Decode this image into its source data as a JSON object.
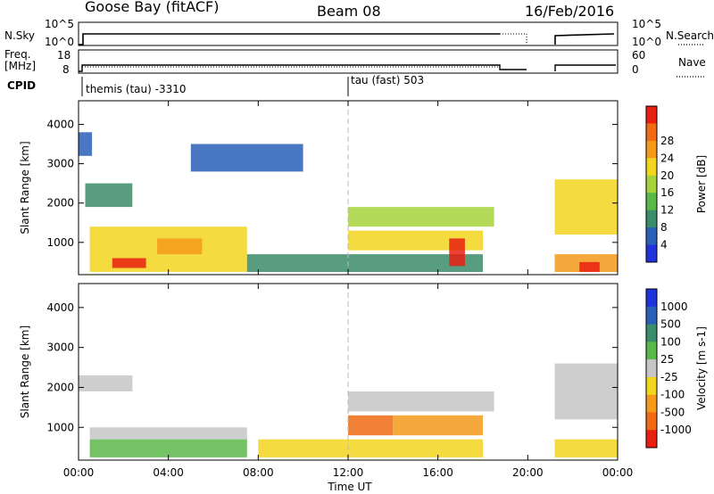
{
  "header": {
    "station": "Goose Bay (fitACF)",
    "beam": "Beam 08",
    "date": "16/Feb/2016"
  },
  "strips": {
    "nsky_label": "N.Sky",
    "nsky_ticks": [
      "10^5",
      "10^0"
    ],
    "nsearch_label": "N.Search",
    "nsearch_ticks": [
      "10^5",
      "10^0"
    ],
    "freq_label_1": "Freq.",
    "freq_label_2": "[MHz]",
    "freq_ticks": [
      "18",
      "8"
    ],
    "nave_label": "Nave",
    "nave_ticks": [
      "60",
      "0"
    ],
    "cpid_label": "CPID",
    "cpid_1": "themis (tau) -3310",
    "cpid_2": "tau (fast) 503"
  },
  "colors": {
    "power": [
      "#1f33d8",
      "#2a5fb8",
      "#3b8c6a",
      "#5ab84a",
      "#a8d23c",
      "#f2d51d",
      "#f39a1a",
      "#f06a14",
      "#e81e10"
    ],
    "velocity": [
      "#1f33d8",
      "#2a5fb8",
      "#3b8c6a",
      "#5ab84a",
      "#c6c6c6",
      "#f2d51d",
      "#f39a1a",
      "#f06a14",
      "#e81e10"
    ]
  },
  "chart_data": [
    {
      "type": "heatmap",
      "title": "Power",
      "ylabel": "Slant Range [km]",
      "xlabel": "",
      "xlim": [
        0,
        24
      ],
      "ylim": [
        180,
        4600
      ],
      "yticks": [
        "1000",
        "2000",
        "3000",
        "4000"
      ],
      "xticks": [
        "00:00",
        "04:00",
        "08:00",
        "12:00",
        "16:00",
        "20:00",
        "00:00"
      ],
      "colorbar_label": "Power [dB]",
      "colorbar_ticks": [
        "4",
        "8",
        "12",
        "16",
        "20",
        "24",
        "28"
      ],
      "regions": [
        {
          "t0": 0.0,
          "t1": 0.6,
          "r0": 3200,
          "r1": 3800,
          "level": 1
        },
        {
          "t0": 0.3,
          "t1": 2.4,
          "r0": 1900,
          "r1": 2500,
          "level": 2
        },
        {
          "t0": 0.5,
          "t1": 7.5,
          "r0": 250,
          "r1": 1400,
          "level": 5
        },
        {
          "t0": 1.5,
          "t1": 3.0,
          "r0": 350,
          "r1": 600,
          "level": 8
        },
        {
          "t0": 3.5,
          "t1": 5.5,
          "r0": 700,
          "r1": 1100,
          "level": 6
        },
        {
          "t0": 5.0,
          "t1": 10.0,
          "r0": 2800,
          "r1": 3500,
          "level": 1
        },
        {
          "t0": 7.5,
          "t1": 12.0,
          "r0": 250,
          "r1": 700,
          "level": 2
        },
        {
          "t0": 12.0,
          "t1": 18.5,
          "r0": 1400,
          "r1": 1900,
          "level": 4
        },
        {
          "t0": 12.0,
          "t1": 18.0,
          "r0": 800,
          "r1": 1300,
          "level": 5
        },
        {
          "t0": 12.0,
          "t1": 18.0,
          "r0": 250,
          "r1": 700,
          "level": 2
        },
        {
          "t0": 16.5,
          "t1": 17.2,
          "r0": 400,
          "r1": 1100,
          "level": 8
        },
        {
          "t0": 21.2,
          "t1": 24.0,
          "r0": 1200,
          "r1": 2600,
          "level": 5
        },
        {
          "t0": 21.2,
          "t1": 24.0,
          "r0": 250,
          "r1": 700,
          "level": 6
        },
        {
          "t0": 22.3,
          "t1": 23.2,
          "r0": 250,
          "r1": 500,
          "level": 8
        }
      ]
    },
    {
      "type": "heatmap",
      "title": "Velocity",
      "ylabel": "Slant Range [km]",
      "xlabel": "Time UT",
      "xlim": [
        0,
        24
      ],
      "ylim": [
        180,
        4600
      ],
      "yticks": [
        "1000",
        "2000",
        "3000",
        "4000"
      ],
      "xticks": [
        "00:00",
        "04:00",
        "08:00",
        "12:00",
        "16:00",
        "20:00",
        "00:00"
      ],
      "colorbar_label": "Velocity [m s-1]",
      "colorbar_ticks": [
        "1000",
        "500",
        "100",
        "25",
        "-25",
        "-100",
        "-500",
        "-1000"
      ],
      "regions": [
        {
          "t0": 0.0,
          "t1": 2.4,
          "r0": 1900,
          "r1": 2300,
          "level": 4
        },
        {
          "t0": 0.5,
          "t1": 7.5,
          "r0": 700,
          "r1": 1000,
          "level": 4
        },
        {
          "t0": 0.5,
          "t1": 7.5,
          "r0": 250,
          "r1": 700,
          "level": 3
        },
        {
          "t0": 8.0,
          "t1": 12.0,
          "r0": 250,
          "r1": 700,
          "level": 5
        },
        {
          "t0": 12.0,
          "t1": 18.5,
          "r0": 1400,
          "r1": 1900,
          "level": 4
        },
        {
          "t0": 12.0,
          "t1": 14.0,
          "r0": 800,
          "r1": 1300,
          "level": 7
        },
        {
          "t0": 14.0,
          "t1": 18.0,
          "r0": 800,
          "r1": 1300,
          "level": 6
        },
        {
          "t0": 12.0,
          "t1": 18.0,
          "r0": 250,
          "r1": 700,
          "level": 5
        },
        {
          "t0": 21.2,
          "t1": 24.0,
          "r0": 1200,
          "r1": 2600,
          "level": 4
        },
        {
          "t0": 21.2,
          "t1": 24.0,
          "r0": 250,
          "r1": 700,
          "level": 5
        }
      ]
    }
  ]
}
